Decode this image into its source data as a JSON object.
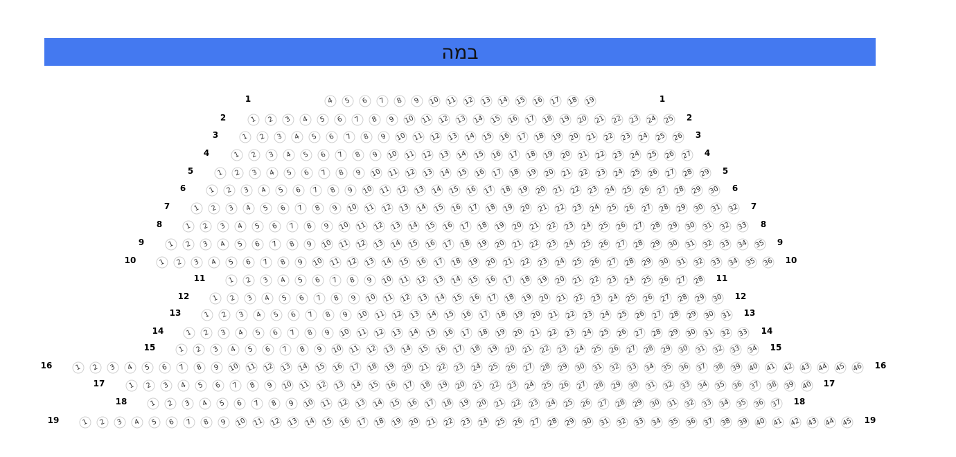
{
  "stage": {
    "label": "במה",
    "color": "#4479f0"
  },
  "seat_border_color": "#cfcfcf",
  "rows": [
    {
      "label": "1",
      "first_seat": 4,
      "last_seat": 19
    },
    {
      "label": "2",
      "first_seat": 1,
      "last_seat": 25
    },
    {
      "label": "3",
      "first_seat": 1,
      "last_seat": 26
    },
    {
      "label": "4",
      "first_seat": 1,
      "last_seat": 27
    },
    {
      "label": "5",
      "first_seat": 1,
      "last_seat": 29
    },
    {
      "label": "6",
      "first_seat": 1,
      "last_seat": 30
    },
    {
      "label": "7",
      "first_seat": 1,
      "last_seat": 32
    },
    {
      "label": "8",
      "first_seat": 1,
      "last_seat": 33
    },
    {
      "label": "9",
      "first_seat": 1,
      "last_seat": 35
    },
    {
      "label": "10",
      "first_seat": 1,
      "last_seat": 36
    },
    {
      "label": "11",
      "first_seat": 1,
      "last_seat": 28
    },
    {
      "label": "12",
      "first_seat": 1,
      "last_seat": 30
    },
    {
      "label": "13",
      "first_seat": 1,
      "last_seat": 31
    },
    {
      "label": "14",
      "first_seat": 1,
      "last_seat": 33
    },
    {
      "label": "15",
      "first_seat": 1,
      "last_seat": 34
    },
    {
      "label": "16",
      "first_seat": 1,
      "last_seat": 46
    },
    {
      "label": "17",
      "first_seat": 1,
      "last_seat": 40
    },
    {
      "label": "18",
      "first_seat": 1,
      "last_seat": 37
    },
    {
      "label": "19",
      "first_seat": 1,
      "last_seat": 45
    }
  ]
}
